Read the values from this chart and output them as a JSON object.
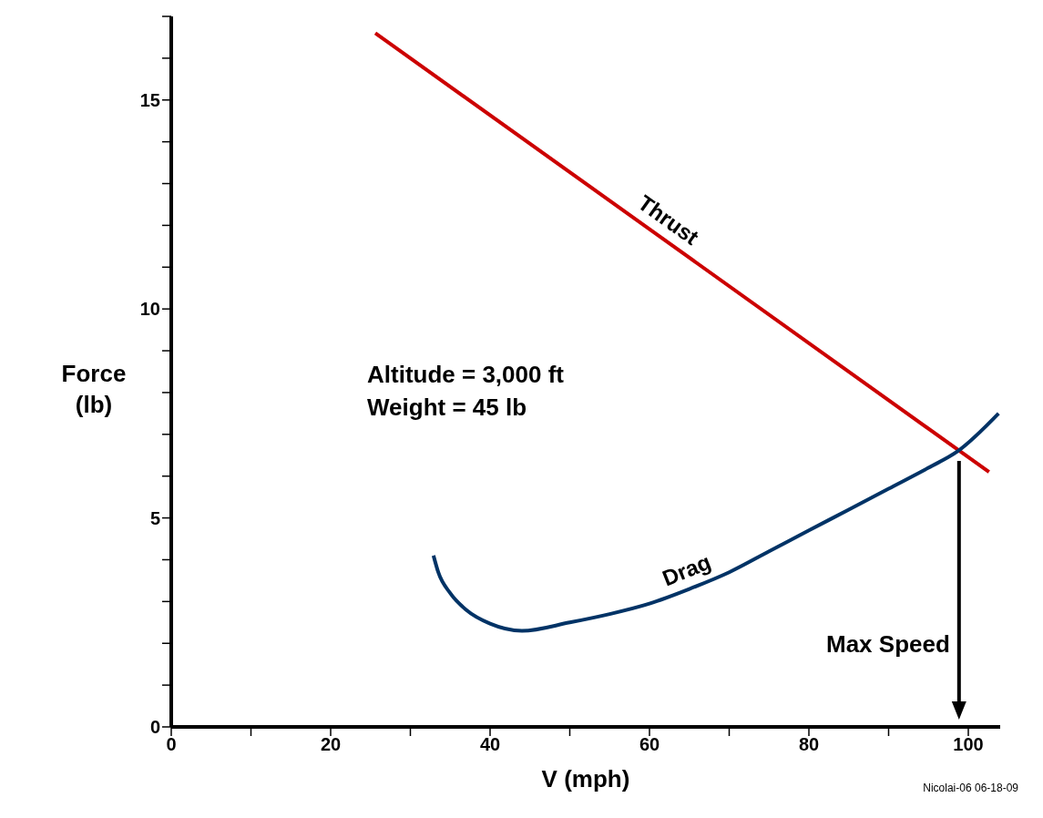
{
  "chart_data": {
    "type": "line",
    "xlabel": "V (mph)",
    "ylabel": "Force (lb)",
    "xlim": [
      0,
      104
    ],
    "ylim": [
      0,
      17
    ],
    "xticks": [
      0,
      {
        "value": 10,
        "label": null
      },
      20,
      {
        "value": 30,
        "label": null
      },
      40,
      {
        "value": 50,
        "label": null
      },
      60,
      {
        "value": 70,
        "label": null
      },
      80,
      {
        "value": 90,
        "label": null
      },
      100
    ],
    "yticks": [
      0,
      {
        "value": 1,
        "label": null
      },
      {
        "value": 2,
        "label": null
      },
      {
        "value": 3,
        "label": null
      },
      {
        "value": 4,
        "label": null
      },
      5,
      {
        "value": 6,
        "label": null
      },
      {
        "value": 7,
        "label": null
      },
      {
        "value": 8,
        "label": null
      },
      {
        "value": 9,
        "label": null
      },
      10,
      {
        "value": 11,
        "label": null
      },
      {
        "value": 12,
        "label": null
      },
      {
        "value": 13,
        "label": null
      },
      {
        "value": 14,
        "label": null
      },
      15,
      {
        "value": 16,
        "label": null
      },
      {
        "value": 17,
        "label": null
      }
    ],
    "marker": "none",
    "line_style": "solid",
    "series": [
      {
        "name": "Thrust",
        "color": "#cc0000",
        "x": [
          25.6,
          102.6
        ],
        "values": [
          16.6,
          6.1
        ]
      },
      {
        "name": "Drag",
        "color": "#003366",
        "x": [
          32.9,
          33.5,
          35,
          37,
          40,
          44,
          50,
          55,
          60,
          65,
          70,
          75,
          80,
          85,
          90,
          95,
          98.7,
          103.8
        ],
        "values": [
          4.1,
          3.7,
          3.2,
          2.8,
          2.47,
          2.3,
          2.5,
          2.7,
          2.95,
          3.3,
          3.7,
          4.2,
          4.7,
          5.2,
          5.7,
          6.2,
          6.6,
          7.5
        ]
      }
    ],
    "annotations": [
      "Altitude = 3,000 ft",
      "Weight = 45 lb",
      "Max Speed",
      "Nicolai-06  06-18-09"
    ]
  }
}
